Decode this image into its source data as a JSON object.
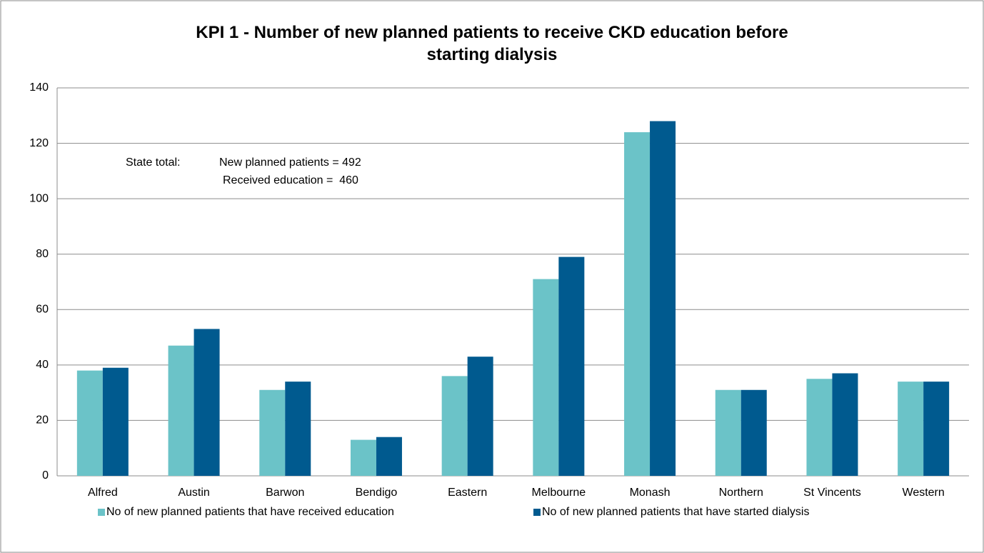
{
  "chart_data": {
    "type": "bar",
    "title": "KPI 1 - Number of new planned patients to receive CKD education before starting dialysis",
    "annotations": [
      "State total:",
      "New planned patients = 492",
      "Received education =  460"
    ],
    "categories": [
      "Alfred",
      "Austin",
      "Barwon",
      "Bendigo",
      "Eastern",
      "Melbourne",
      "Monash",
      "Northern",
      "St Vincents",
      "Western"
    ],
    "series": [
      {
        "name": "No of new planned patients that have received education",
        "color": "#6bc3c8",
        "values": [
          38,
          47,
          31,
          13,
          36,
          71,
          124,
          31,
          35,
          34
        ]
      },
      {
        "name": "No of new planned patients that have started dialysis",
        "color": "#005a8f",
        "values": [
          39,
          53,
          34,
          14,
          43,
          79,
          128,
          31,
          37,
          34
        ]
      }
    ],
    "ylim": [
      0,
      140
    ],
    "yticks": [
      0,
      20,
      40,
      60,
      80,
      100,
      120,
      140
    ],
    "grid": true,
    "legend": "bottom"
  }
}
